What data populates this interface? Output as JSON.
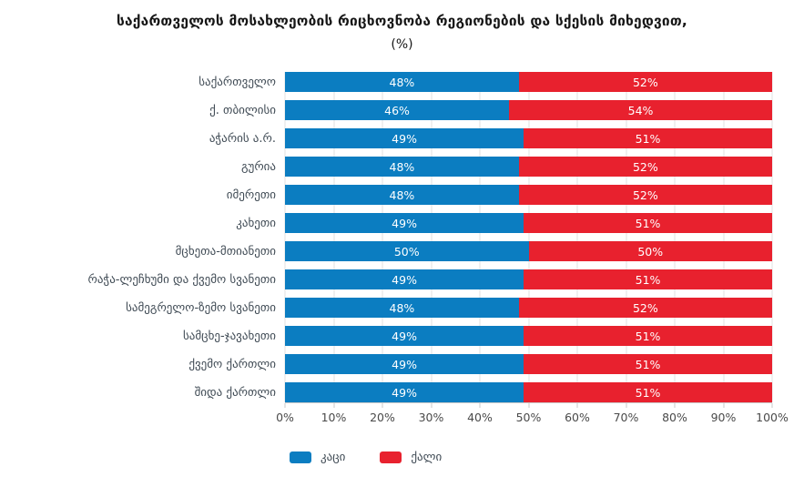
{
  "title": "საქართველოს მოსახლეობის რიცხოვნობა რეგიონების და სქესის მიხედვით,",
  "subtitle": "(%)",
  "colors": {
    "men": "#0b7dc1",
    "women": "#e8212e",
    "gridline": "#e2e2e2",
    "axis": "#c9c9c9",
    "category_label": "#3f4a54",
    "bar_value_label": "#ffffff"
  },
  "chart_data": {
    "type": "bar",
    "orientation": "horizontal",
    "stacked": true,
    "grid": true,
    "legend_position": "bottom",
    "xlim": [
      0,
      100
    ],
    "x_ticks": [
      "0%",
      "10%",
      "20%",
      "30%",
      "40%",
      "50%",
      "60%",
      "70%",
      "80%",
      "90%",
      "100%"
    ],
    "categories": [
      "საქართველო",
      "ქ. თბილისი",
      "აჭარის ა.რ.",
      "გურია",
      "იმერეთი",
      "კახეთი",
      "მცხეთა-მთიანეთი",
      "რაჭა-ლეჩხუმი და ქვემო სვანეთი",
      "სამეგრელო-ზემო სვანეთი",
      "სამცხე-ჯავახეთი",
      "ქვემო ქართლი",
      "შიდა ქართლი"
    ],
    "series": [
      {
        "name": "კაცი",
        "color": "#0b7dc1",
        "values": [
          48,
          46,
          49,
          48,
          48,
          49,
          50,
          49,
          48,
          49,
          49,
          49
        ],
        "labels": [
          "48%",
          "46%",
          "49%",
          "48%",
          "48%",
          "49%",
          "50%",
          "49%",
          "48%",
          "49%",
          "49%",
          "49%"
        ]
      },
      {
        "name": "ქალი",
        "color": "#e8212e",
        "values": [
          52,
          54,
          51,
          52,
          52,
          51,
          50,
          51,
          52,
          51,
          51,
          51
        ],
        "labels": [
          "52%",
          "54%",
          "51%",
          "52%",
          "52%",
          "51%",
          "50%",
          "51%",
          "52%",
          "51%",
          "51%",
          "51%"
        ]
      }
    ]
  }
}
